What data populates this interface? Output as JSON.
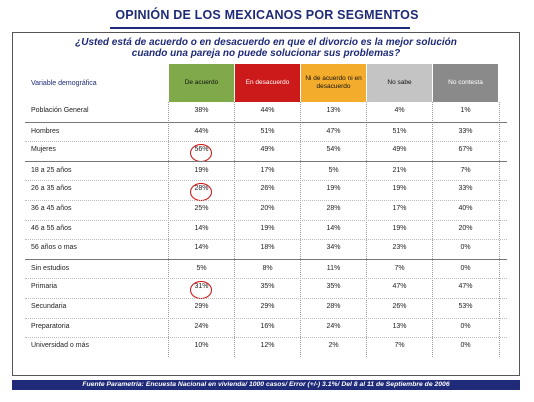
{
  "title": "OPINIÓN DE LOS MEXICANOS POR SEGMENTOS",
  "question_line1": "¿Usted está de acuerdo o en desacuerdo en que el divorcio es la mejor solución",
  "question_line2": "cuando una pareja no puede solucionar sus problemas?",
  "source": "Fuente Parametría: Encuesta Nacional en vivienda/ 1000 casos/ Error (+/-) 3.1%/ Del 8 al 11 de Septiembre de 2006",
  "chart_data": {
    "type": "table",
    "row_header": "Variable demográfica",
    "columns": [
      {
        "label": "De acuerdo",
        "color": "#80a94a"
      },
      {
        "label": "En desacuerdo",
        "color": "#cc1919"
      },
      {
        "label": "Ni de acuerdo ni en desacuerdo",
        "color": "#f4ac2c"
      },
      {
        "label": "No sabe",
        "color": "#c4c4c4"
      },
      {
        "label": "No contesta",
        "color": "#8a8a8a"
      }
    ],
    "rows": [
      {
        "label": "Población General",
        "values": [
          "38%",
          "44%",
          "13%",
          "4%",
          "1%"
        ],
        "group_start": false
      },
      {
        "label": "Hombres",
        "values": [
          "44%",
          "51%",
          "47%",
          "51%",
          "33%"
        ],
        "group_start": true
      },
      {
        "label": "Mujeres",
        "values": [
          "56%",
          "49%",
          "54%",
          "49%",
          "67%"
        ],
        "group_start": false,
        "circled": 0
      },
      {
        "label": "18 a 25 años",
        "values": [
          "19%",
          "17%",
          "5%",
          "21%",
          "7%"
        ],
        "group_start": true
      },
      {
        "label": "26 a 35 años",
        "values": [
          "28%",
          "26%",
          "19%",
          "19%",
          "33%"
        ],
        "group_start": false,
        "circled": 0
      },
      {
        "label": "36 a 45 años",
        "values": [
          "25%",
          "20%",
          "28%",
          "17%",
          "40%"
        ],
        "group_start": false
      },
      {
        "label": "46 a 55 años",
        "values": [
          "14%",
          "19%",
          "14%",
          "19%",
          "20%"
        ],
        "group_start": false
      },
      {
        "label": "56 años o mas",
        "values": [
          "14%",
          "18%",
          "34%",
          "23%",
          "0%"
        ],
        "group_start": false
      },
      {
        "label": "Sin estudios",
        "values": [
          "5%",
          "8%",
          "11%",
          "7%",
          "0%"
        ],
        "group_start": true
      },
      {
        "label": "Primaria",
        "values": [
          "31%",
          "35%",
          "35%",
          "47%",
          "47%"
        ],
        "group_start": false,
        "circled": 0
      },
      {
        "label": "Secundaria",
        "values": [
          "29%",
          "29%",
          "28%",
          "26%",
          "53%"
        ],
        "group_start": false
      },
      {
        "label": "Preparatoria",
        "values": [
          "24%",
          "16%",
          "24%",
          "13%",
          "0%"
        ],
        "group_start": false
      },
      {
        "label": "Universidad o más",
        "values": [
          "10%",
          "12%",
          "2%",
          "7%",
          "0%"
        ],
        "group_start": false
      }
    ]
  }
}
